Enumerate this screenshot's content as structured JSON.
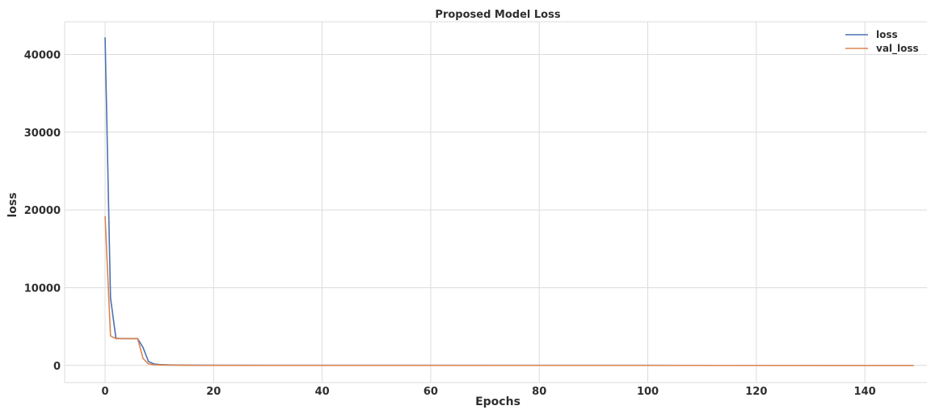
{
  "chart_data": {
    "type": "line",
    "title": "Proposed Model  Loss",
    "xlabel": "Epochs",
    "ylabel": "loss",
    "xlim": [
      -7.45,
      151.45
    ],
    "ylim": [
      -2200,
      44200
    ],
    "xticks": [
      0,
      20,
      40,
      60,
      80,
      100,
      120,
      140
    ],
    "yticks": [
      0,
      10000,
      20000,
      30000,
      40000
    ],
    "grid": true,
    "legend_position": "top-right",
    "series": [
      {
        "name": "loss",
        "color": "#4c72b0",
        "points": [
          [
            0,
            42200
          ],
          [
            1,
            8700
          ],
          [
            2,
            3500
          ],
          [
            3,
            3450
          ],
          [
            4,
            3450
          ],
          [
            5,
            3450
          ],
          [
            6,
            3450
          ],
          [
            7,
            2300
          ],
          [
            8,
            500
          ],
          [
            9,
            200
          ],
          [
            10,
            120
          ],
          [
            12,
            70
          ],
          [
            15,
            40
          ],
          [
            20,
            25
          ],
          [
            30,
            15
          ],
          [
            50,
            10
          ],
          [
            100,
            8
          ],
          [
            149,
            5
          ]
        ]
      },
      {
        "name": "val_loss",
        "color": "#dd8452",
        "points": [
          [
            0,
            19200
          ],
          [
            1,
            3800
          ],
          [
            2,
            3450
          ],
          [
            3,
            3450
          ],
          [
            4,
            3450
          ],
          [
            5,
            3450
          ],
          [
            6,
            3450
          ],
          [
            7,
            900
          ],
          [
            8,
            200
          ],
          [
            9,
            90
          ],
          [
            10,
            60
          ],
          [
            12,
            40
          ],
          [
            15,
            25
          ],
          [
            20,
            15
          ],
          [
            30,
            10
          ],
          [
            50,
            8
          ],
          [
            100,
            6
          ],
          [
            149,
            4
          ]
        ]
      }
    ]
  }
}
